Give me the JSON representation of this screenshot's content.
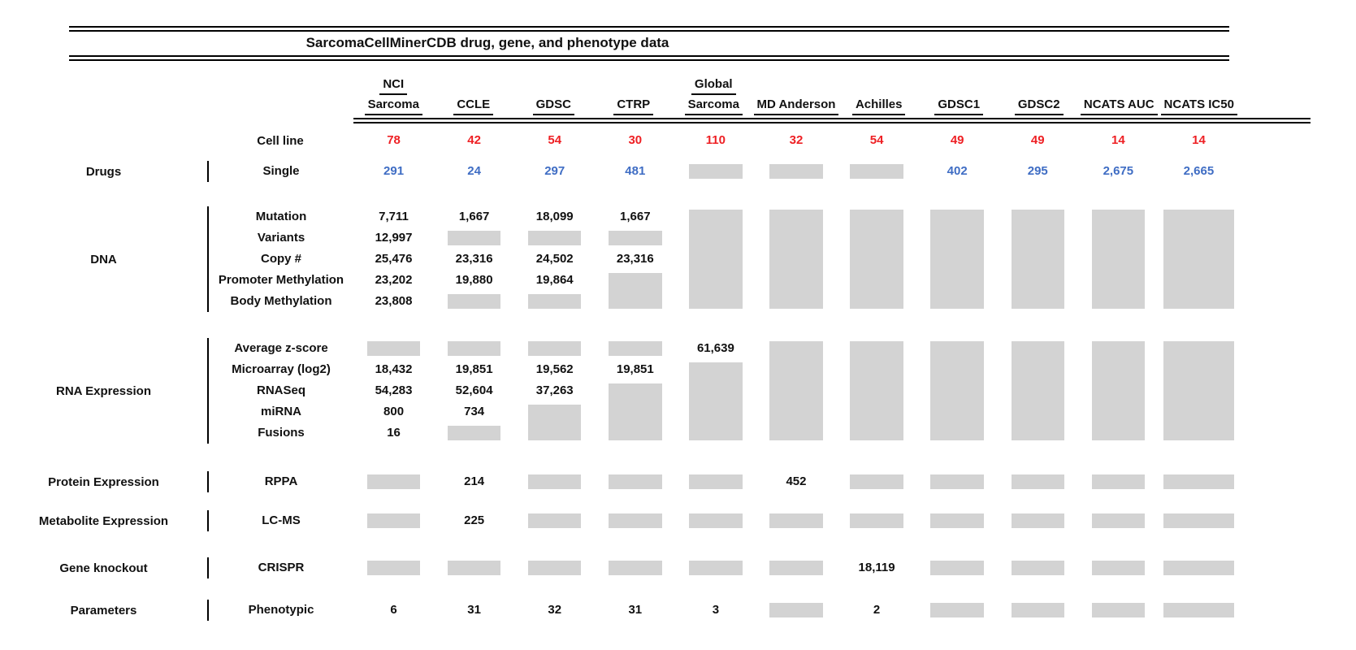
{
  "title": "SarcomaCellMinerCDB drug, gene, and phenotype data",
  "colors": {
    "red": "#ee2024",
    "blue": "#3f6dc4",
    "no_data_gray": "#d3d3d3"
  },
  "legend_note": "gray box = no data available",
  "header": {
    "cell_line_label": "Cell line",
    "columns": [
      {
        "top": "NCI",
        "name": "Sarcoma"
      },
      {
        "top": "",
        "name": "CCLE"
      },
      {
        "top": "",
        "name": "GDSC"
      },
      {
        "top": "",
        "name": "CTRP"
      },
      {
        "top": "Global",
        "name": "Sarcoma"
      },
      {
        "top": "",
        "name": "MD Anderson"
      },
      {
        "top": "",
        "name": "Achilles"
      },
      {
        "top": "",
        "name": "GDSC1"
      },
      {
        "top": "",
        "name": "GDSC2"
      },
      {
        "top": "",
        "name": "NCATS AUC"
      },
      {
        "top": "",
        "name": "NCATS IC50"
      }
    ],
    "cell_line_counts": [
      "78",
      "42",
      "54",
      "30",
      "110",
      "32",
      "54",
      "49",
      "49",
      "14",
      "14"
    ]
  },
  "sections": [
    {
      "category": "Drugs",
      "rows": [
        "Single"
      ],
      "color": "blue",
      "cols": [
        [
          {
            "t": "291"
          }
        ],
        [
          {
            "t": "24"
          }
        ],
        [
          {
            "t": "297"
          }
        ],
        [
          {
            "t": "481"
          }
        ],
        [
          {
            "g": 1
          }
        ],
        [
          {
            "g": 1
          }
        ],
        [
          {
            "g": 1
          }
        ],
        [
          {
            "t": "402"
          }
        ],
        [
          {
            "t": "295"
          }
        ],
        [
          {
            "t": "2,675"
          }
        ],
        [
          {
            "t": "2,665"
          }
        ]
      ]
    },
    {
      "category": "DNA",
      "rows": [
        "Mutation",
        "Variants",
        "Copy #",
        "Promoter Methylation",
        "Body Methylation"
      ],
      "color": "",
      "cols": [
        [
          {
            "t": "7,711"
          },
          {
            "t": "12,997"
          },
          {
            "t": "25,476"
          },
          {
            "t": "23,202"
          },
          {
            "t": "23,808"
          }
        ],
        [
          {
            "t": "1,667"
          },
          {
            "g": 1
          },
          {
            "t": "23,316"
          },
          {
            "t": "19,880"
          },
          {
            "g": 1
          }
        ],
        [
          {
            "t": "18,099"
          },
          {
            "g": 1
          },
          {
            "t": "24,502"
          },
          {
            "t": "19,864"
          },
          {
            "g": 1
          }
        ],
        [
          {
            "t": "1,667"
          },
          {
            "g": 1
          },
          {
            "t": "23,316"
          },
          {
            "g": 2
          }
        ],
        [
          {
            "g": 5
          }
        ],
        [
          {
            "g": 5
          }
        ],
        [
          {
            "g": 5
          }
        ],
        [
          {
            "g": 5
          }
        ],
        [
          {
            "g": 5
          }
        ],
        [
          {
            "g": 5
          }
        ],
        [
          {
            "g": 5
          }
        ]
      ]
    },
    {
      "category": "RNA Expression",
      "rows": [
        "Average z-score",
        "Microarray (log2)",
        "RNASeq",
        "miRNA",
        "Fusions"
      ],
      "color": "",
      "cols": [
        [
          {
            "g": 1
          },
          {
            "t": "18,432"
          },
          {
            "t": "54,283"
          },
          {
            "t": "800"
          },
          {
            "t": "16"
          }
        ],
        [
          {
            "g": 1
          },
          {
            "t": "19,851"
          },
          {
            "t": "52,604"
          },
          {
            "t": "734"
          },
          {
            "g": 1
          }
        ],
        [
          {
            "g": 1
          },
          {
            "t": "19,562"
          },
          {
            "t": "37,263"
          },
          {
            "g": 2
          }
        ],
        [
          {
            "g": 1
          },
          {
            "t": "19,851"
          },
          {
            "g": 3
          }
        ],
        [
          {
            "t": "61,639"
          },
          {
            "g": 4
          }
        ],
        [
          {
            "g": 5
          }
        ],
        [
          {
            "g": 5
          }
        ],
        [
          {
            "g": 5
          }
        ],
        [
          {
            "g": 5
          }
        ],
        [
          {
            "g": 5
          }
        ],
        [
          {
            "g": 5
          }
        ]
      ]
    },
    {
      "category": "Protein Expression",
      "rows": [
        "RPPA"
      ],
      "color": "",
      "cols": [
        [
          {
            "g": 1
          }
        ],
        [
          {
            "t": "214"
          }
        ],
        [
          {
            "g": 1
          }
        ],
        [
          {
            "g": 1
          }
        ],
        [
          {
            "g": 1
          }
        ],
        [
          {
            "t": "452"
          }
        ],
        [
          {
            "g": 1
          }
        ],
        [
          {
            "g": 1
          }
        ],
        [
          {
            "g": 1
          }
        ],
        [
          {
            "g": 1
          }
        ],
        [
          {
            "g": 1
          }
        ]
      ]
    },
    {
      "category": "Metabolite Expression",
      "rows": [
        "LC-MS"
      ],
      "color": "",
      "cols": [
        [
          {
            "g": 1
          }
        ],
        [
          {
            "t": "225"
          }
        ],
        [
          {
            "g": 1
          }
        ],
        [
          {
            "g": 1
          }
        ],
        [
          {
            "g": 1
          }
        ],
        [
          {
            "g": 1
          }
        ],
        [
          {
            "g": 1
          }
        ],
        [
          {
            "g": 1
          }
        ],
        [
          {
            "g": 1
          }
        ],
        [
          {
            "g": 1
          }
        ],
        [
          {
            "g": 1
          }
        ]
      ]
    },
    {
      "category": "Gene knockout",
      "rows": [
        "CRISPR"
      ],
      "color": "",
      "cols": [
        [
          {
            "g": 1
          }
        ],
        [
          {
            "g": 1
          }
        ],
        [
          {
            "g": 1
          }
        ],
        [
          {
            "g": 1
          }
        ],
        [
          {
            "g": 1
          }
        ],
        [
          {
            "g": 1
          }
        ],
        [
          {
            "t": "18,119"
          }
        ],
        [
          {
            "g": 1
          }
        ],
        [
          {
            "g": 1
          }
        ],
        [
          {
            "g": 1
          }
        ],
        [
          {
            "g": 1
          }
        ]
      ]
    },
    {
      "category": "Parameters",
      "rows": [
        "Phenotypic"
      ],
      "color": "",
      "cols": [
        [
          {
            "t": "6"
          }
        ],
        [
          {
            "t": "31"
          }
        ],
        [
          {
            "t": "32"
          }
        ],
        [
          {
            "t": "31"
          }
        ],
        [
          {
            "t": "3"
          }
        ],
        [
          {
            "g": 1
          }
        ],
        [
          {
            "t": "2"
          }
        ],
        [
          {
            "g": 1
          }
        ],
        [
          {
            "g": 1
          }
        ],
        [
          {
            "g": 1
          }
        ],
        [
          {
            "g": 1
          }
        ]
      ]
    }
  ],
  "chart_data": {
    "type": "table",
    "title": "SarcomaCellMinerCDB drug, gene, and phenotype data",
    "columns": [
      "NCI Sarcoma",
      "CCLE",
      "GDSC",
      "CTRP",
      "Global Sarcoma",
      "MD Anderson",
      "Achilles",
      "GDSC1",
      "GDSC2",
      "NCATS AUC",
      "NCATS IC50"
    ],
    "null_means": "no data (gray box)",
    "rows": [
      {
        "category": "",
        "label": "Cell line",
        "values": [
          78,
          42,
          54,
          30,
          110,
          32,
          54,
          49,
          49,
          14,
          14
        ]
      },
      {
        "category": "Drugs",
        "label": "Single",
        "values": [
          291,
          24,
          297,
          481,
          null,
          null,
          null,
          402,
          295,
          2675,
          2665
        ]
      },
      {
        "category": "DNA",
        "label": "Mutation",
        "values": [
          7711,
          1667,
          18099,
          1667,
          null,
          null,
          null,
          null,
          null,
          null,
          null
        ]
      },
      {
        "category": "DNA",
        "label": "Variants",
        "values": [
          12997,
          null,
          null,
          null,
          null,
          null,
          null,
          null,
          null,
          null,
          null
        ]
      },
      {
        "category": "DNA",
        "label": "Copy #",
        "values": [
          25476,
          23316,
          24502,
          23316,
          null,
          null,
          null,
          null,
          null,
          null,
          null
        ]
      },
      {
        "category": "DNA",
        "label": "Promoter Methylation",
        "values": [
          23202,
          19880,
          19864,
          null,
          null,
          null,
          null,
          null,
          null,
          null,
          null
        ]
      },
      {
        "category": "DNA",
        "label": "Body Methylation",
        "values": [
          23808,
          null,
          null,
          null,
          null,
          null,
          null,
          null,
          null,
          null,
          null
        ]
      },
      {
        "category": "RNA Expression",
        "label": "Average z-score",
        "values": [
          null,
          null,
          null,
          null,
          61639,
          null,
          null,
          null,
          null,
          null,
          null
        ]
      },
      {
        "category": "RNA Expression",
        "label": "Microarray (log2)",
        "values": [
          18432,
          19851,
          19562,
          19851,
          null,
          null,
          null,
          null,
          null,
          null,
          null
        ]
      },
      {
        "category": "RNA Expression",
        "label": "RNASeq",
        "values": [
          54283,
          52604,
          37263,
          null,
          null,
          null,
          null,
          null,
          null,
          null,
          null
        ]
      },
      {
        "category": "RNA Expression",
        "label": "miRNA",
        "values": [
          800,
          734,
          null,
          null,
          null,
          null,
          null,
          null,
          null,
          null,
          null
        ]
      },
      {
        "category": "RNA Expression",
        "label": "Fusions",
        "values": [
          16,
          null,
          null,
          null,
          null,
          null,
          null,
          null,
          null,
          null,
          null
        ]
      },
      {
        "category": "Protein Expression",
        "label": "RPPA",
        "values": [
          null,
          214,
          null,
          null,
          null,
          452,
          null,
          null,
          null,
          null,
          null
        ]
      },
      {
        "category": "Metabolite Expression",
        "label": "LC-MS",
        "values": [
          null,
          225,
          null,
          null,
          null,
          null,
          null,
          null,
          null,
          null,
          null
        ]
      },
      {
        "category": "Gene knockout",
        "label": "CRISPR",
        "values": [
          null,
          null,
          null,
          null,
          null,
          null,
          18119,
          null,
          null,
          null,
          null
        ]
      },
      {
        "category": "Parameters",
        "label": "Phenotypic",
        "values": [
          6,
          31,
          32,
          31,
          3,
          null,
          2,
          null,
          null,
          null,
          null
        ]
      }
    ]
  }
}
